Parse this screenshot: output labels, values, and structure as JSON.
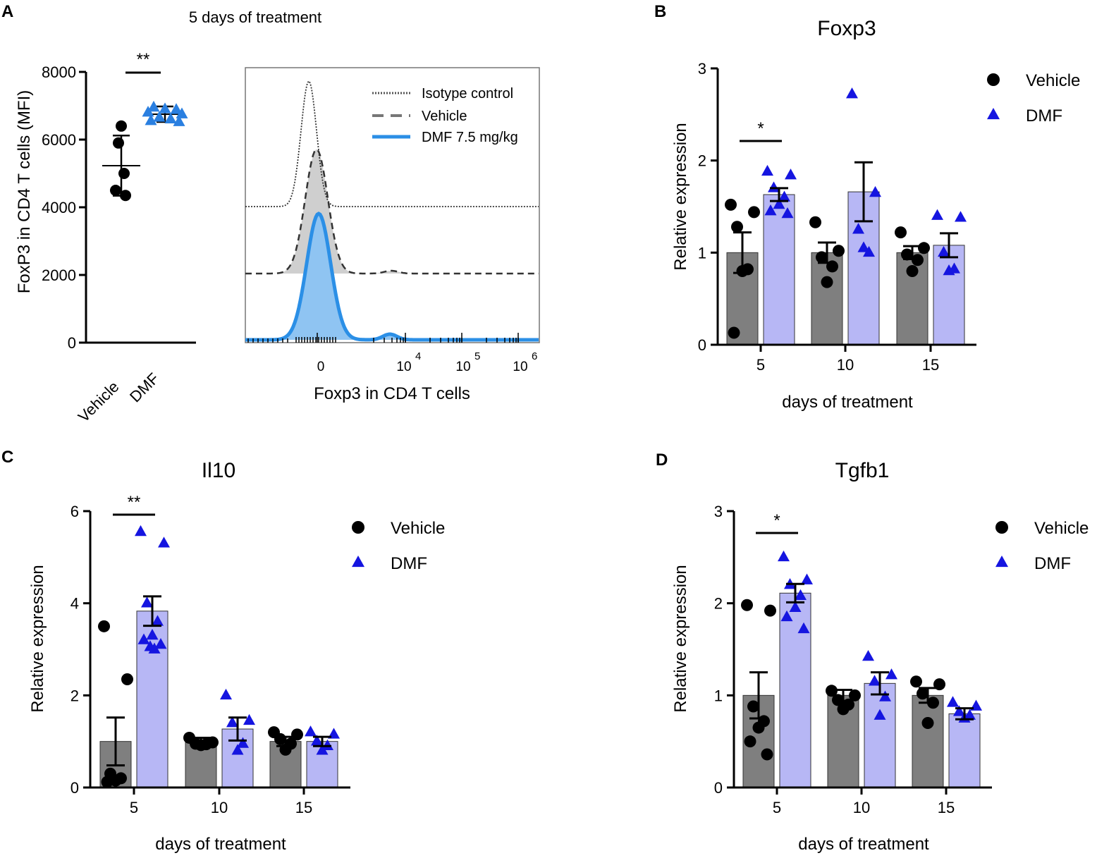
{
  "colors": {
    "vehicle_bar": "#7f7f7f",
    "dmf_bar": "#b7b7f5",
    "vehicle_point": "#000000",
    "dmf_point": "#1515e0",
    "scatter_dmf_point": "#2a7fe0",
    "hist_dmf": "#2b8fe6",
    "hist_dmf_fill": "#8fc4f2",
    "hist_vehicle_fill": "#cfcfcf"
  },
  "chart_data": [
    {
      "id": "A1",
      "panel_label": "A",
      "type": "scatter",
      "title": "5 days of treatment",
      "ylabel": "FoxP3 in CD4 T cells (MFI)",
      "ylim": [
        0,
        8000
      ],
      "yticks": [
        0,
        2000,
        4000,
        6000,
        8000
      ],
      "yticks_text": [
        "0",
        "2000",
        "4000",
        "6000",
        "8000"
      ],
      "categories": [
        "Vehicle",
        "DMF"
      ],
      "significance": "**",
      "series": [
        {
          "name": "Vehicle",
          "points": [
            6400,
            5900,
            5000,
            4500,
            4350
          ],
          "mean": 5230,
          "sd": 890
        },
        {
          "name": "DMF",
          "points": [
            6950,
            6900,
            6880,
            6800,
            6750,
            6650,
            6600,
            6550,
            6520
          ],
          "mean": 6750,
          "sd": 230
        }
      ]
    },
    {
      "id": "A2",
      "panel_label": "",
      "type": "line",
      "xlabel": "Foxp3 in CD4 T cells",
      "xtick_labels": [
        {
          "base": "0",
          "exp": ""
        },
        {
          "base": "10",
          "exp": "4"
        },
        {
          "base": "10",
          "exp": "5"
        },
        {
          "base": "10",
          "exp": "6"
        }
      ],
      "legend": [
        "Isotype control",
        "Vehicle",
        "DMF 7.5 mg/kg"
      ],
      "legend_position": "top-right",
      "series": [
        {
          "name": "Isotype control",
          "style": "dotted",
          "peak_x": 2.3,
          "peak_height": 1.0
        },
        {
          "name": "Vehicle",
          "style": "dashed",
          "peak_x": 2.42,
          "peak_height": 0.96
        },
        {
          "name": "DMF 7.5 mg/kg",
          "style": "solid",
          "peak_x": 2.4,
          "peak_height": 0.97
        }
      ]
    },
    {
      "id": "B",
      "panel_label": "B",
      "type": "bar",
      "title": "Foxp3",
      "xlabel": "days of treatment",
      "ylabel": "Relative expression",
      "categories": [
        "5",
        "10",
        "15"
      ],
      "ylim": [
        0,
        3
      ],
      "yticks": [
        0,
        1,
        2,
        3
      ],
      "yticks_text": [
        "0",
        "1",
        "2",
        "3"
      ],
      "legend": [
        "Vehicle",
        "DMF"
      ],
      "legend_position": "top-right",
      "significance": [
        {
          "category": "5",
          "label": "*"
        }
      ],
      "series": [
        {
          "name": "Vehicle",
          "values": [
            1.0,
            1.0,
            1.0
          ],
          "sem": [
            0.22,
            0.11,
            0.07
          ],
          "points": [
            [
              1.52,
              1.44,
              1.28,
              0.82,
              0.8,
              0.13
            ],
            [
              1.33,
              1.02,
              0.95,
              0.85,
              0.68
            ],
            [
              1.22,
              1.05,
              0.98,
              0.92,
              0.8
            ]
          ]
        },
        {
          "name": "DMF",
          "values": [
            1.63,
            1.66,
            1.08
          ],
          "sem": [
            0.07,
            0.32,
            0.13
          ],
          "points": [
            [
              1.88,
              1.84,
              1.7,
              1.6,
              1.52,
              1.45,
              1.42
            ],
            [
              2.72,
              1.65,
              1.25,
              1.0,
              1.05
            ],
            [
              1.4,
              1.38,
              1.0,
              0.82,
              0.8
            ]
          ]
        }
      ]
    },
    {
      "id": "C",
      "panel_label": "C",
      "type": "bar",
      "title": "Il10",
      "xlabel": "days of treatment",
      "ylabel": "Relative expression",
      "categories": [
        "5",
        "10",
        "15"
      ],
      "ylim": [
        0,
        6
      ],
      "yticks": [
        0,
        2,
        4,
        6
      ],
      "yticks_text": [
        "0",
        "2",
        "4",
        "6"
      ],
      "legend": [
        "Vehicle",
        "DMF"
      ],
      "legend_position": "top-right",
      "significance": [
        {
          "category": "5",
          "label": "**"
        }
      ],
      "series": [
        {
          "name": "Vehicle",
          "values": [
            1.0,
            1.0,
            1.0
          ],
          "sem": [
            0.52,
            0.08,
            0.1
          ],
          "points": [
            [
              3.5,
              2.35,
              0.3,
              0.2,
              0.15,
              0.12
            ],
            [
              1.08,
              0.98,
              0.95,
              0.94,
              0.92
            ],
            [
              1.2,
              1.15,
              1.05,
              0.95,
              0.82
            ]
          ]
        },
        {
          "name": "DMF",
          "values": [
            3.83,
            1.27,
            1.0
          ],
          "sem": [
            0.32,
            0.25,
            0.1
          ],
          "points": [
            [
              5.55,
              5.3,
              4.0,
              3.6,
              3.3,
              3.2,
              3.1,
              3.05,
              3.0
            ],
            [
              2.0,
              1.45,
              1.4,
              0.95,
              0.8
            ],
            [
              1.2,
              1.15,
              1.0,
              0.9,
              0.8
            ]
          ]
        }
      ]
    },
    {
      "id": "D",
      "panel_label": "D",
      "type": "bar",
      "title": "Tgfb1",
      "xlabel": "days of treatment",
      "ylabel": "Relative expression",
      "categories": [
        "5",
        "10",
        "15"
      ],
      "ylim": [
        0,
        3
      ],
      "yticks": [
        0,
        1,
        2,
        3
      ],
      "yticks_text": [
        "0",
        "1",
        "2",
        "3"
      ],
      "legend": [
        "Vehicle",
        "DMF"
      ],
      "legend_position": "top-right",
      "significance": [
        {
          "category": "5",
          "label": "*"
        }
      ],
      "series": [
        {
          "name": "Vehicle",
          "values": [
            1.0,
            1.0,
            1.0
          ],
          "sem": [
            0.25,
            0.06,
            0.08
          ],
          "points": [
            [
              1.98,
              1.92,
              0.88,
              0.72,
              0.65,
              0.5,
              0.36
            ],
            [
              1.05,
              1.0,
              0.95,
              0.9,
              0.85
            ],
            [
              1.15,
              1.12,
              1.02,
              0.92,
              0.7
            ]
          ]
        },
        {
          "name": "DMF",
          "values": [
            2.11,
            1.13,
            0.8
          ],
          "sem": [
            0.1,
            0.12,
            0.06
          ],
          "points": [
            [
              2.5,
              2.25,
              2.2,
              2.08,
              1.95,
              1.85,
              1.72
            ],
            [
              1.42,
              1.22,
              1.15,
              0.98,
              0.78
            ],
            [
              0.92,
              0.88,
              0.82,
              0.78,
              0.75
            ]
          ]
        }
      ]
    }
  ]
}
